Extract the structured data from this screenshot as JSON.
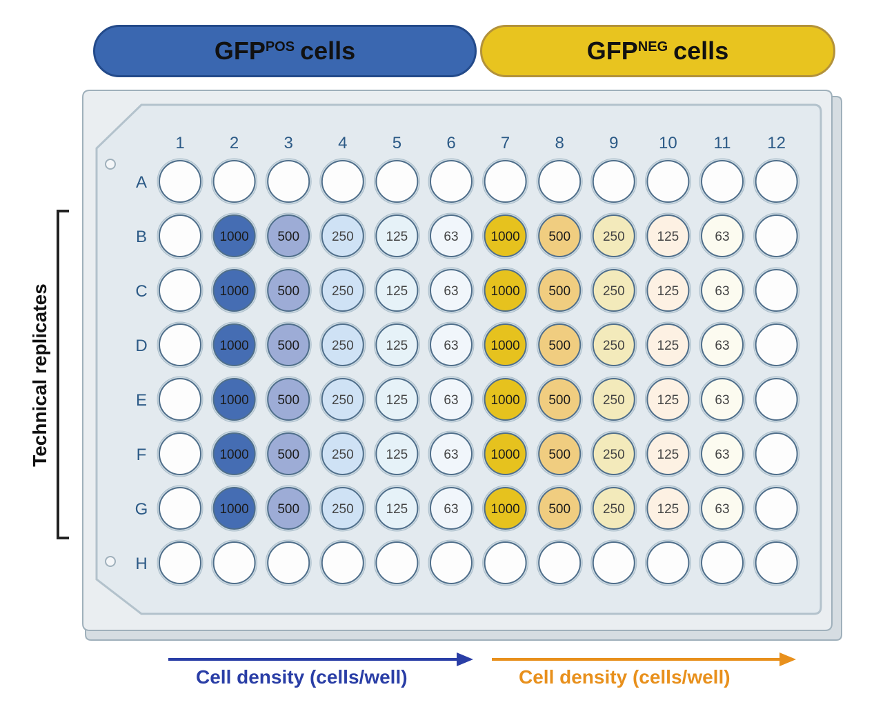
{
  "banners": {
    "pos": {
      "base": "GFP",
      "sup": "POS",
      "suffix": "cells",
      "color": "#3a67b0"
    },
    "neg": {
      "base": "GFP",
      "sup": "NEG",
      "suffix": "cells",
      "color": "#e8c41f"
    }
  },
  "columns": [
    "1",
    "2",
    "3",
    "4",
    "5",
    "6",
    "7",
    "8",
    "9",
    "10",
    "11",
    "12"
  ],
  "rows": [
    "A",
    "B",
    "C",
    "D",
    "E",
    "F",
    "G",
    "H"
  ],
  "seeded_rows": [
    "B",
    "C",
    "D",
    "E",
    "F",
    "G"
  ],
  "densities": {
    "2": "1000",
    "3": "500",
    "4": "250",
    "5": "125",
    "6": "63",
    "7": "1000",
    "8": "500",
    "9": "250",
    "10": "125",
    "11": "63"
  },
  "well_colors": {
    "empty": "#fdfdfd",
    "2": "#456db3",
    "3": "#9dacd6",
    "4": "#cfe2f5",
    "5": "#e6f2f8",
    "6": "#f1f6fb",
    "7": "#e6c21e",
    "8": "#f0cd80",
    "9": "#f3eabb",
    "10": "#fdf1e3",
    "11": "#fcfbf0"
  },
  "side_label": "Technical replicates",
  "axis_pos": {
    "label": "Cell density (cells/well)",
    "color": "#2a3ea6"
  },
  "axis_neg": {
    "label": "Cell density (cells/well)",
    "color": "#e8901c"
  }
}
